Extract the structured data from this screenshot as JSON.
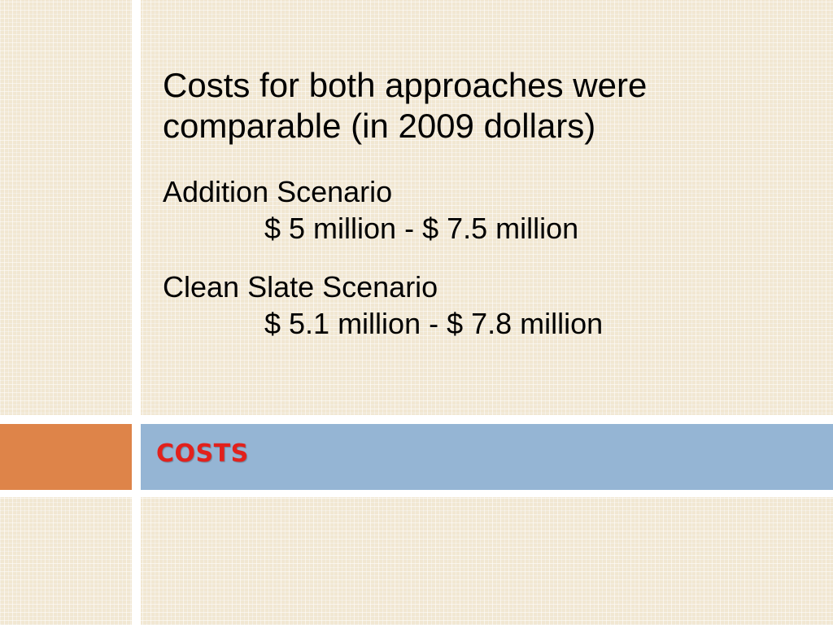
{
  "slide": {
    "title": "COSTS",
    "lead": "Costs for both approaches were comparable (in 2009 dollars)",
    "scenarios": [
      {
        "name": "Addition Scenario",
        "range": "$ 5 million - $ 7.5 million"
      },
      {
        "name": "Clean Slate Scenario",
        "range": "$ 5.1 million - $ 7.8 million"
      }
    ]
  },
  "colors": {
    "background": "#f1e7d2",
    "accent_orange": "#de8449",
    "title_band": "#95b5d4",
    "title_text": "#e2211c"
  }
}
